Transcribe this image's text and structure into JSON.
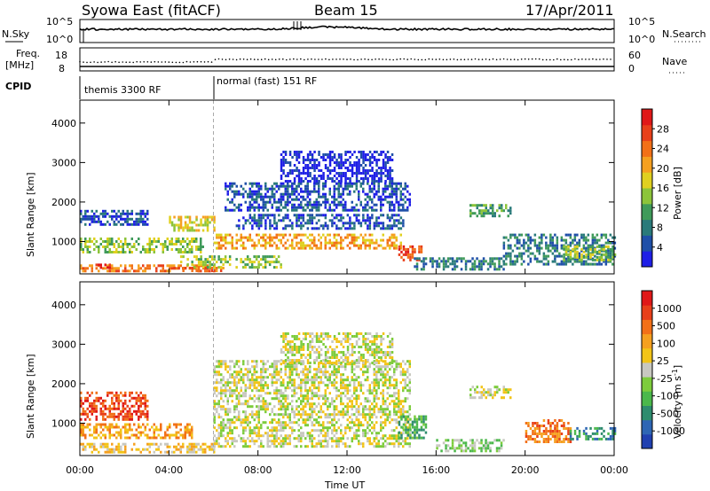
{
  "header": {
    "station": "Syowa East (fitACF)",
    "beam": "Beam 15",
    "date": "17/Apr/2011"
  },
  "panel_labels": {
    "nsky": "N.Sky",
    "nsearch": "N.Search",
    "freq": "Freq.",
    "freq_unit": "[MHz]",
    "nave": "Nave",
    "cpid": "CPID"
  },
  "noise_ticks": {
    "left": [
      "10^5",
      "10^0"
    ],
    "right": [
      "10^5",
      "10^0"
    ]
  },
  "freq_ticks": {
    "left": [
      "18",
      "8"
    ],
    "right": [
      "60",
      "0"
    ]
  },
  "cpid_segments": [
    {
      "label": "themis 3300 RF",
      "start_hour": 0,
      "end_hour": 6
    },
    {
      "label": "normal (fast) 151 RF",
      "start_hour": 6,
      "end_hour": 24
    }
  ],
  "chart_data": [
    {
      "type": "heatmap",
      "name": "power",
      "ylabel": "Slant Range [km]",
      "ylim": [
        180,
        4580
      ],
      "yticks": [
        "4000",
        "3000",
        "2000",
        "1000"
      ],
      "xlim": [
        0,
        24
      ],
      "colorbar": {
        "label": "Power [dB]",
        "ticks": [
          "28",
          "24",
          "20",
          "16",
          "12",
          "8",
          "4"
        ],
        "colors": [
          "#1f1fe6",
          "#1f4fa8",
          "#2a7a7a",
          "#3f9a5a",
          "#8cc43a",
          "#e0d020",
          "#f5a020",
          "#f27018",
          "#e8401a",
          "#e01818"
        ]
      },
      "echo_regions": [
        {
          "t0": 0,
          "t1": 6,
          "r0": 280,
          "r1": 420,
          "level": 7
        },
        {
          "t0": 0.6,
          "t1": 1.5,
          "r0": 330,
          "r1": 440,
          "level": 9
        },
        {
          "t0": 0,
          "t1": 5.5,
          "r0": 700,
          "r1": 1100,
          "level": 4
        },
        {
          "t0": 0,
          "t1": 3,
          "r0": 1400,
          "r1": 1800,
          "level": 1
        },
        {
          "t0": 4,
          "t1": 6,
          "r0": 1250,
          "r1": 1650,
          "level": 5
        },
        {
          "t0": 4.2,
          "t1": 6.4,
          "r0": 280,
          "r1": 360,
          "level": 7
        },
        {
          "t0": 6,
          "t1": 14.5,
          "r0": 820,
          "r1": 1200,
          "level": 6
        },
        {
          "t0": 7,
          "t1": 14.5,
          "r0": 1300,
          "r1": 1700,
          "level": 1
        },
        {
          "t0": 6.5,
          "t1": 14.8,
          "r0": 1800,
          "r1": 2500,
          "level": 1
        },
        {
          "t0": 9,
          "t1": 14,
          "r0": 2500,
          "r1": 3300,
          "level": 0
        },
        {
          "t0": 4.5,
          "t1": 9,
          "r0": 350,
          "r1": 650,
          "level": 4
        },
        {
          "t0": 14.3,
          "t1": 15.3,
          "r0": 550,
          "r1": 900,
          "level": 8
        },
        {
          "t0": 17.5,
          "t1": 19.3,
          "r0": 1650,
          "r1": 1950,
          "level": 3
        },
        {
          "t0": 19,
          "t1": 24,
          "r0": 400,
          "r1": 1200,
          "level": 2
        },
        {
          "t0": 21.7,
          "t1": 24,
          "r0": 550,
          "r1": 900,
          "level": 4
        },
        {
          "t0": 15,
          "t1": 19,
          "r0": 300,
          "r1": 600,
          "level": 2
        }
      ]
    },
    {
      "type": "heatmap",
      "name": "velocity",
      "ylabel": "Slant Range [km]",
      "ylim": [
        180,
        4580
      ],
      "yticks": [
        "4000",
        "3000",
        "2000",
        "1000"
      ],
      "xlim": [
        0,
        24
      ],
      "xticks": [
        "00:00",
        "04:00",
        "08:00",
        "12:00",
        "16:00",
        "20:00",
        "00:00"
      ],
      "xlabel": "Time UT",
      "colorbar": {
        "label": "Velocity [m s",
        "label_sup": "-1",
        "label_end": "]",
        "ticks": [
          "1000",
          "500",
          "100",
          "25",
          "-25",
          "-100",
          "-500",
          "-1000"
        ],
        "colors": [
          "#2040b0",
          "#2e66b4",
          "#2e8c6e",
          "#4bb84b",
          "#7dcc3c",
          "#c8c8c0",
          "#f2c418",
          "#f5a020",
          "#f27018",
          "#e8401a",
          "#e01818"
        ]
      },
      "echo_regions": [
        {
          "t0": 0,
          "t1": 6,
          "r0": 280,
          "r1": 500,
          "level": 6
        },
        {
          "t0": 0,
          "t1": 3,
          "r0": 1100,
          "r1": 1800,
          "level": 9
        },
        {
          "t0": 0,
          "t1": 5,
          "r0": 600,
          "r1": 1000,
          "level": 7
        },
        {
          "t0": 6,
          "t1": 14.8,
          "r0": 400,
          "r1": 2600,
          "level": 5
        },
        {
          "t0": 9,
          "t1": 14,
          "r0": 2500,
          "r1": 3300,
          "level": 5
        },
        {
          "t0": 14.3,
          "t1": 15.5,
          "r0": 600,
          "r1": 1200,
          "level": 3
        },
        {
          "t0": 17.5,
          "t1": 19.3,
          "r0": 1650,
          "r1": 1950,
          "level": 5
        },
        {
          "t0": 20,
          "t1": 22,
          "r0": 500,
          "r1": 1100,
          "level": 8
        },
        {
          "t0": 22,
          "t1": 24,
          "r0": 600,
          "r1": 900,
          "level": 2
        },
        {
          "t0": 16,
          "t1": 19,
          "r0": 300,
          "r1": 600,
          "level": 4
        }
      ]
    }
  ]
}
